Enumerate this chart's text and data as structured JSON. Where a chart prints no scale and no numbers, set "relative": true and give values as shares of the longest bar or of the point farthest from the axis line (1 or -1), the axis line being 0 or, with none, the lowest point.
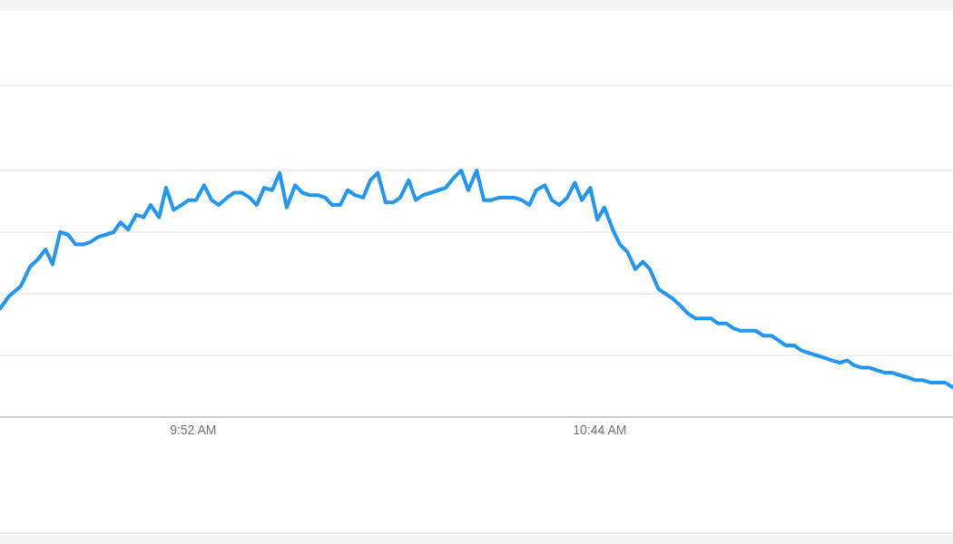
{
  "chart_data": {
    "type": "line",
    "relative": true,
    "grid": "y",
    "marker": "none",
    "line_style": "solid",
    "xlim": [
      9.455,
      11.486
    ],
    "xticks": [
      {
        "value": 9.8667,
        "label": "9:52 AM"
      },
      {
        "value": 10.7333,
        "label": "10:44 AM"
      }
    ],
    "x": [
      9.455,
      9.474,
      9.499,
      9.519,
      9.536,
      9.552,
      9.567,
      9.583,
      9.6,
      9.616,
      9.633,
      9.648,
      9.664,
      9.681,
      9.697,
      9.712,
      9.728,
      9.745,
      9.761,
      9.776,
      9.794,
      9.809,
      9.825,
      9.842,
      9.857,
      9.873,
      9.89,
      9.906,
      9.921,
      9.939,
      9.954,
      9.97,
      9.987,
      10.002,
      10.018,
      10.035,
      10.051,
      10.066,
      10.084,
      10.099,
      10.115,
      10.132,
      10.148,
      10.163,
      10.18,
      10.196,
      10.211,
      10.229,
      10.244,
      10.26,
      10.277,
      10.293,
      10.308,
      10.326,
      10.341,
      10.357,
      10.374,
      10.389,
      10.405,
      10.422,
      10.438,
      10.453,
      10.471,
      10.486,
      10.502,
      10.519,
      10.535,
      10.55,
      10.567,
      10.583,
      10.598,
      10.616,
      10.631,
      10.647,
      10.664,
      10.68,
      10.695,
      10.713,
      10.728,
      10.743,
      10.761,
      10.776,
      10.792,
      10.809,
      10.825,
      10.84,
      10.858,
      10.873,
      10.889,
      10.906,
      10.921,
      10.937,
      10.954,
      10.97,
      10.985,
      11.003,
      11.018,
      11.034,
      11.051,
      11.066,
      11.082,
      11.099,
      11.115,
      11.13,
      11.148,
      11.163,
      11.179,
      11.196,
      11.212,
      11.227,
      11.245,
      11.26,
      11.275,
      11.293,
      11.308,
      11.324,
      11.341,
      11.357,
      11.372,
      11.39,
      11.405,
      11.421,
      11.438,
      11.453,
      11.469,
      11.486
    ],
    "series": [
      {
        "color": "#2196f3",
        "values": [
          0.44,
          0.49,
          0.53,
          0.61,
          0.64,
          0.68,
          0.62,
          0.75,
          0.74,
          0.7,
          0.7,
          0.71,
          0.73,
          0.74,
          0.75,
          0.79,
          0.76,
          0.82,
          0.81,
          0.86,
          0.81,
          0.93,
          0.84,
          0.86,
          0.88,
          0.88,
          0.94,
          0.88,
          0.86,
          0.89,
          0.91,
          0.91,
          0.89,
          0.86,
          0.93,
          0.92,
          0.99,
          0.85,
          0.94,
          0.91,
          0.9,
          0.9,
          0.89,
          0.86,
          0.86,
          0.92,
          0.9,
          0.89,
          0.96,
          0.99,
          0.87,
          0.87,
          0.89,
          0.96,
          0.88,
          0.9,
          0.91,
          0.92,
          0.93,
          0.97,
          1.0,
          0.92,
          1.0,
          0.88,
          0.88,
          0.89,
          0.89,
          0.89,
          0.88,
          0.86,
          0.92,
          0.94,
          0.88,
          0.86,
          0.89,
          0.95,
          0.88,
          0.93,
          0.8,
          0.85,
          0.76,
          0.7,
          0.67,
          0.6,
          0.63,
          0.6,
          0.52,
          0.5,
          0.48,
          0.45,
          0.42,
          0.4,
          0.4,
          0.4,
          0.38,
          0.38,
          0.36,
          0.35,
          0.35,
          0.35,
          0.33,
          0.33,
          0.31,
          0.29,
          0.29,
          0.27,
          0.26,
          0.25,
          0.24,
          0.23,
          0.22,
          0.23,
          0.21,
          0.2,
          0.2,
          0.19,
          0.18,
          0.18,
          0.17,
          0.16,
          0.15,
          0.15,
          0.14,
          0.14,
          0.14,
          0.12
        ]
      }
    ]
  }
}
